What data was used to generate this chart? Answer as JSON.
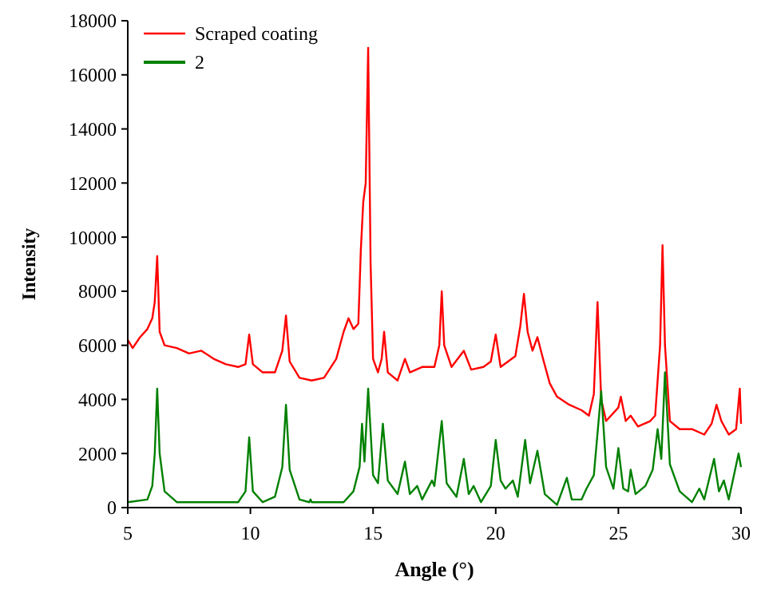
{
  "chart_data": {
    "type": "line",
    "xlabel": "Angle (°)",
    "ylabel": "Intensity",
    "xlim": [
      5,
      30
    ],
    "xticks": [
      5,
      10,
      15,
      20,
      25,
      30
    ],
    "ylim": [
      0,
      18000
    ],
    "yticks": [
      0,
      2000,
      4000,
      6000,
      8000,
      10000,
      12000,
      14000,
      16000,
      18000
    ],
    "grid": false,
    "legend": "top left",
    "marker": "none",
    "line_style": "solid",
    "series": [
      {
        "name": "Scraped coating",
        "color": "#ff0000",
        "x": [
          5,
          5.2,
          5.5,
          5.8,
          6.0,
          6.1,
          6.2,
          6.3,
          6.5,
          7,
          7.5,
          8,
          8.5,
          9,
          9.5,
          9.8,
          9.95,
          10.1,
          10.5,
          11,
          11.3,
          11.45,
          11.6,
          12,
          12.5,
          13,
          13.5,
          13.8,
          14.0,
          14.2,
          14.4,
          14.5,
          14.6,
          14.7,
          14.8,
          14.9,
          15.0,
          15.2,
          15.35,
          15.45,
          15.6,
          16.0,
          16.3,
          16.5,
          17,
          17.5,
          17.7,
          17.8,
          17.9,
          18.2,
          18.7,
          19,
          19.5,
          19.8,
          20.0,
          20.2,
          20.5,
          20.8,
          21.0,
          21.15,
          21.3,
          21.5,
          21.7,
          21.9,
          22.2,
          22.5,
          23,
          23.5,
          23.8,
          24.0,
          24.15,
          24.3,
          24.5,
          25.0,
          25.1,
          25.3,
          25.5,
          25.8,
          26.3,
          26.5,
          26.7,
          26.8,
          26.9,
          27.1,
          27.5,
          28,
          28.5,
          28.8,
          29.0,
          29.2,
          29.5,
          29.8,
          29.95,
          30
        ],
        "values": [
          6200,
          5900,
          6300,
          6600,
          7000,
          7600,
          9300,
          6500,
          6000,
          5900,
          5700,
          5800,
          5500,
          5300,
          5200,
          5300,
          6400,
          5300,
          5000,
          5000,
          5800,
          7100,
          5400,
          4800,
          4700,
          4800,
          5500,
          6500,
          7000,
          6600,
          6800,
          9500,
          11300,
          12000,
          17000,
          9000,
          5500,
          5000,
          5500,
          6500,
          5000,
          4700,
          5500,
          5000,
          5200,
          5200,
          6000,
          8000,
          6000,
          5200,
          5800,
          5100,
          5200,
          5400,
          6400,
          5200,
          5400,
          5600,
          6700,
          7900,
          6500,
          5800,
          6300,
          5600,
          4600,
          4100,
          3800,
          3600,
          3400,
          4200,
          7600,
          4000,
          3200,
          3700,
          4100,
          3200,
          3400,
          3000,
          3200,
          3400,
          6000,
          9700,
          6000,
          3200,
          2900,
          2900,
          2700,
          3100,
          3800,
          3200,
          2700,
          2900,
          4400,
          3100
        ]
      },
      {
        "name": "2",
        "color": "#008000",
        "x": [
          5,
          5.8,
          6.0,
          6.1,
          6.2,
          6.3,
          6.5,
          7,
          9.5,
          9.8,
          9.95,
          10.1,
          10.5,
          11.0,
          11.3,
          11.45,
          11.6,
          12,
          12.4,
          12.45,
          12.5,
          13.8,
          14.2,
          14.45,
          14.55,
          14.65,
          14.8,
          15.0,
          15.2,
          15.4,
          15.6,
          16.0,
          16.3,
          16.5,
          16.8,
          17.0,
          17.4,
          17.5,
          17.8,
          18.0,
          18.4,
          18.7,
          18.9,
          19.1,
          19.4,
          19.8,
          20.0,
          20.2,
          20.4,
          20.7,
          20.9,
          21.2,
          21.4,
          21.7,
          22.0,
          22.5,
          22.9,
          23.1,
          23.5,
          23.7,
          24.0,
          24.3,
          24.5,
          24.8,
          25.0,
          25.2,
          25.4,
          25.5,
          25.7,
          26.1,
          26.4,
          26.6,
          26.75,
          26.9,
          27.1,
          27.5,
          28.0,
          28.3,
          28.5,
          28.9,
          29.1,
          29.3,
          29.5,
          29.9,
          30
        ],
        "values": [
          200,
          300,
          800,
          2000,
          4400,
          2000,
          600,
          200,
          200,
          600,
          2600,
          600,
          200,
          400,
          1500,
          3800,
          1400,
          300,
          200,
          300,
          200,
          200,
          600,
          1500,
          3100,
          1700,
          4400,
          1200,
          900,
          3100,
          1000,
          500,
          1700,
          500,
          800,
          300,
          1000,
          800,
          3200,
          900,
          400,
          1800,
          500,
          800,
          200,
          800,
          2500,
          1000,
          700,
          1000,
          400,
          2500,
          900,
          2100,
          500,
          100,
          1100,
          300,
          300,
          700,
          1200,
          4300,
          1500,
          700,
          2200,
          700,
          600,
          1400,
          500,
          800,
          1400,
          2900,
          1800,
          5000,
          1600,
          600,
          200,
          700,
          300,
          1800,
          600,
          1000,
          300,
          2000,
          1500
        ]
      }
    ]
  }
}
